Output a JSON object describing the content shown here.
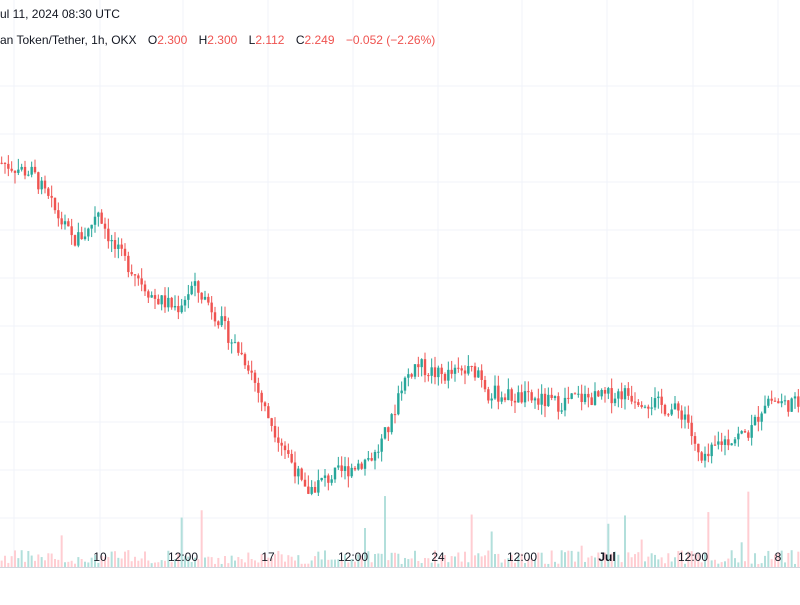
{
  "header": {
    "timestamp": "ul 11, 2024 08:30 UTC",
    "symbol": "an Token/Tether, 1h, OKX",
    "ohlc": {
      "o_label": "O",
      "o": "2.300",
      "h_label": "H",
      "h": "2.300",
      "l_label": "L",
      "l": "2.112",
      "c_label": "C",
      "c": "2.249",
      "change": "−0.052 (−2.26%)"
    }
  },
  "colors": {
    "up": "#26a69a",
    "down": "#ef5350",
    "volume_up": "#b2dfdb",
    "volume_down": "#ffcdd2",
    "grid": "#f0f3fa",
    "axis_text": "#131722"
  },
  "chart_data": {
    "type": "candlestick",
    "interval": "1h",
    "exchange": "OKX",
    "grid": true,
    "y_axis_labels_visible": false,
    "x_tick_labels": [
      "10",
      "12:00",
      "17",
      "12:00",
      "24",
      "12:00",
      "Jul",
      "12:00",
      "8"
    ],
    "price_path_keypoints": [
      {
        "t": 0,
        "close": 2.62
      },
      {
        "t": 0.04,
        "close": 2.6
      },
      {
        "t": 0.06,
        "close": 2.55
      },
      {
        "t": 0.09,
        "close": 2.48
      },
      {
        "t": 0.11,
        "close": 2.5
      },
      {
        "t": 0.12,
        "close": 2.54
      },
      {
        "t": 0.14,
        "close": 2.47
      },
      {
        "t": 0.17,
        "close": 2.42
      },
      {
        "t": 0.19,
        "close": 2.38
      },
      {
        "t": 0.22,
        "close": 2.36
      },
      {
        "t": 0.24,
        "close": 2.4
      },
      {
        "t": 0.26,
        "close": 2.37
      },
      {
        "t": 0.29,
        "close": 2.3
      },
      {
        "t": 0.31,
        "close": 2.26
      },
      {
        "t": 0.33,
        "close": 2.18
      },
      {
        "t": 0.37,
        "close": 2.07
      },
      {
        "t": 0.38,
        "close": 2.03
      },
      {
        "t": 0.4,
        "close": 2.05
      },
      {
        "t": 0.43,
        "close": 2.07
      },
      {
        "t": 0.47,
        "close": 2.1
      },
      {
        "t": 0.49,
        "close": 2.16
      },
      {
        "t": 0.5,
        "close": 2.22
      },
      {
        "t": 0.52,
        "close": 2.26
      },
      {
        "t": 0.55,
        "close": 2.24
      },
      {
        "t": 0.6,
        "close": 2.25
      },
      {
        "t": 0.61,
        "close": 2.21
      },
      {
        "t": 0.65,
        "close": 2.2
      },
      {
        "t": 0.7,
        "close": 2.19
      },
      {
        "t": 0.72,
        "close": 2.2
      },
      {
        "t": 0.75,
        "close": 2.2
      },
      {
        "t": 0.78,
        "close": 2.21
      },
      {
        "t": 0.82,
        "close": 2.19
      },
      {
        "t": 0.86,
        "close": 2.17
      },
      {
        "t": 0.87,
        "close": 2.11
      },
      {
        "t": 0.88,
        "close": 2.08
      },
      {
        "t": 0.9,
        "close": 2.12
      },
      {
        "t": 0.94,
        "close": 2.14
      },
      {
        "t": 0.96,
        "close": 2.2
      },
      {
        "t": 0.98,
        "close": 2.19
      },
      {
        "t": 1.0,
        "close": 2.19
      }
    ],
    "price_range_shown": [
      2.0,
      2.75
    ]
  }
}
